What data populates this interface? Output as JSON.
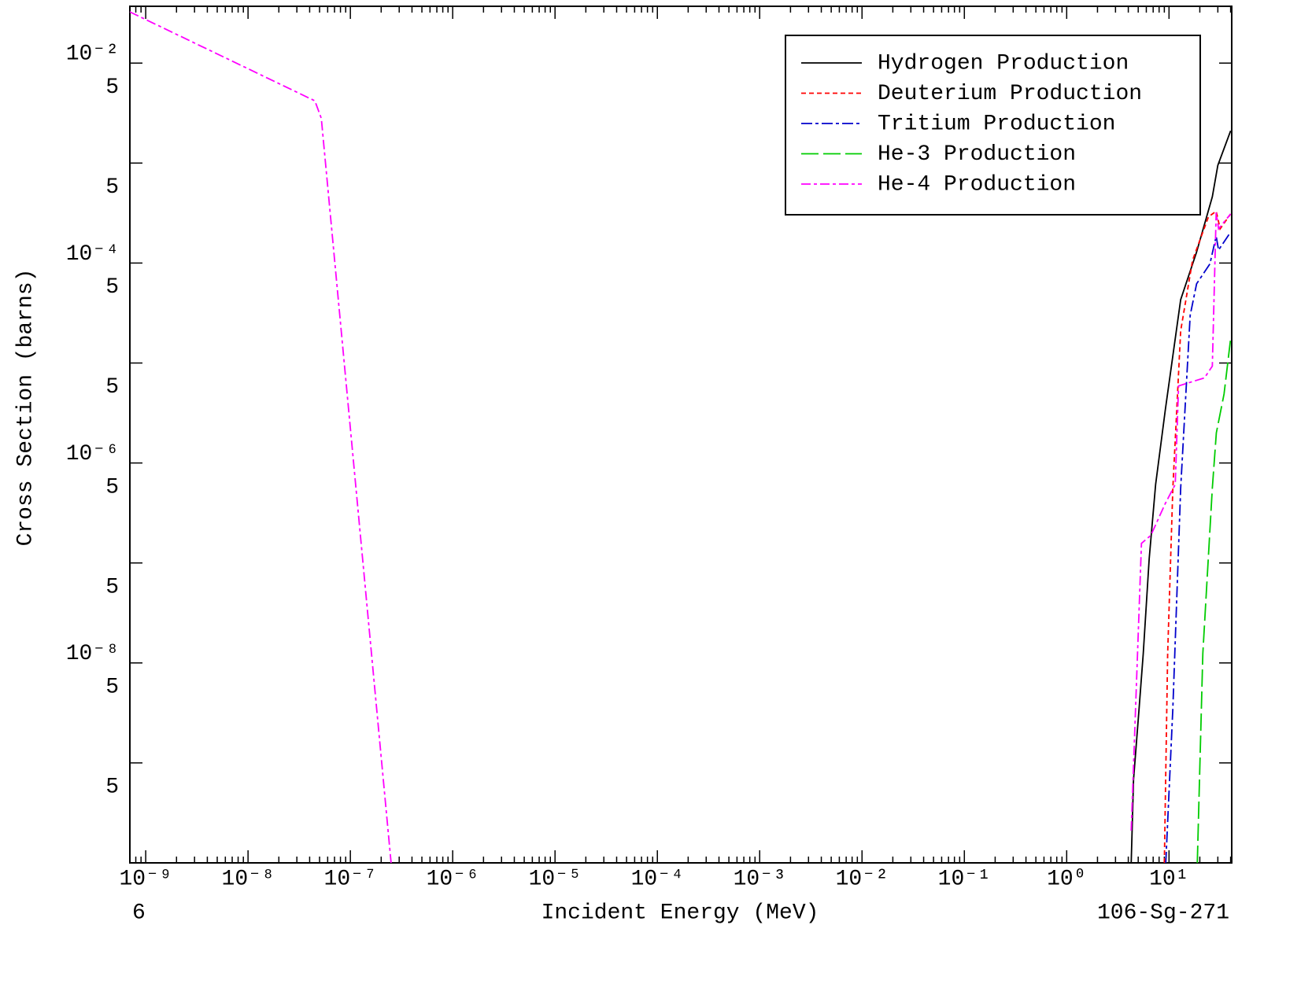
{
  "chart_data": {
    "type": "line",
    "x_label": "Incident Energy (MeV)",
    "y_label": "Cross Section (barns)",
    "footer_left": "6",
    "footer_right": "106-Sg-271",
    "x_log": true,
    "y_log": true,
    "x_minor_ticks": true,
    "xlim": [
      7e-10,
      41
    ],
    "ylim": [
      1e-10,
      0.037
    ],
    "xticks": [
      {
        "value": 1e-09,
        "label": "10⁻⁹"
      },
      {
        "value": 1e-08,
        "label": "10⁻⁸"
      },
      {
        "value": 1e-07,
        "label": "10⁻⁷"
      },
      {
        "value": 1e-06,
        "label": "10⁻⁶"
      },
      {
        "value": 1e-05,
        "label": "10⁻⁵"
      },
      {
        "value": 0.0001,
        "label": "10⁻⁴"
      },
      {
        "value": 0.001,
        "label": "10⁻³"
      },
      {
        "value": 0.01,
        "label": "10⁻²"
      },
      {
        "value": 0.1,
        "label": "10⁻¹"
      },
      {
        "value": 1,
        "label": "10⁰"
      },
      {
        "value": 10,
        "label": "10¹"
      }
    ],
    "yticks": [
      {
        "value": 0.01,
        "label": "10⁻²"
      },
      {
        "value": 0.005,
        "label": "5"
      },
      {
        "value": 0.0005,
        "label": "5"
      },
      {
        "value": 0.0001,
        "label": "10⁻⁴"
      },
      {
        "value": 5e-05,
        "label": "5"
      },
      {
        "value": 5e-06,
        "label": "5"
      },
      {
        "value": 1e-06,
        "label": "10⁻⁶"
      },
      {
        "value": 5e-07,
        "label": "5"
      },
      {
        "value": 5e-08,
        "label": "5"
      },
      {
        "value": 1e-08,
        "label": "10⁻⁸"
      },
      {
        "value": 5e-09,
        "label": "5"
      },
      {
        "value": 5e-10,
        "label": "5"
      }
    ],
    "yticks_unlabeled": [
      0.001,
      1e-05,
      1e-07,
      1e-09
    ],
    "series": [
      {
        "name": "Hydrogen Production",
        "color": "#000000",
        "dash": "none",
        "x": [
          4.27,
          4.5,
          5.1,
          5.6,
          6.4,
          7.4,
          9.2,
          13,
          18.6,
          26.5,
          30,
          40
        ],
        "values": [
          1e-10,
          6.8e-10,
          3.5e-09,
          1.24e-08,
          1.1e-07,
          6.1e-07,
          3.4e-06,
          4.3e-05,
          0.000129,
          0.00046,
          0.00095,
          0.0021
        ]
      },
      {
        "name": "Deuterium Production",
        "color": "#ff0000",
        "dash": "6 4",
        "x": [
          9,
          9.7,
          10.9,
          13,
          17,
          24.3,
          28.9,
          31.6,
          40
        ],
        "values": [
          1e-10,
          1.24e-08,
          5.6e-07,
          2.1e-05,
          0.000107,
          0.00029,
          0.00033,
          0.00022,
          0.00031
        ]
      },
      {
        "name": "Tritium Production",
        "color": "#0000cc",
        "dash": "14 4 4 4",
        "x": [
          9.3,
          10.9,
          13,
          16.1,
          18.6,
          25.1,
          28.9,
          30.5,
          40
        ],
        "values": [
          1e-10,
          3.5e-09,
          5.6e-07,
          3e-05,
          6.2e-05,
          9.8e-05,
          0.000186,
          0.000135,
          0.000204
        ]
      },
      {
        "name": "He-3 Production",
        "color": "#00cc00",
        "dash": "22 6",
        "x": [
          18.9,
          21.4,
          26.5,
          29,
          34.5,
          40
        ],
        "values": [
          1e-10,
          1.24e-08,
          5.6e-07,
          2e-06,
          4.9e-06,
          1.75e-05
        ]
      },
      {
        "name": "He-4 Production",
        "color": "#ff00ff",
        "dash": "12 4 4 4",
        "x": [
          7e-10,
          4.5e-08,
          5.2e-08,
          2.5e-07,
          null,
          4.27,
          5.38,
          6.65,
          9.16,
          11.5,
          12.4,
          22.2,
          26.5,
          28.9,
          30.5,
          40
        ],
        "values": [
          0.0325,
          0.00419,
          0.0028,
          1e-10,
          null,
          2.1e-10,
          1.57e-07,
          1.89e-07,
          3.9e-07,
          6.1e-07,
          5.9e-06,
          7.1e-06,
          9.3e-06,
          0.00032,
          0.00022,
          0.00031
        ]
      }
    ]
  }
}
